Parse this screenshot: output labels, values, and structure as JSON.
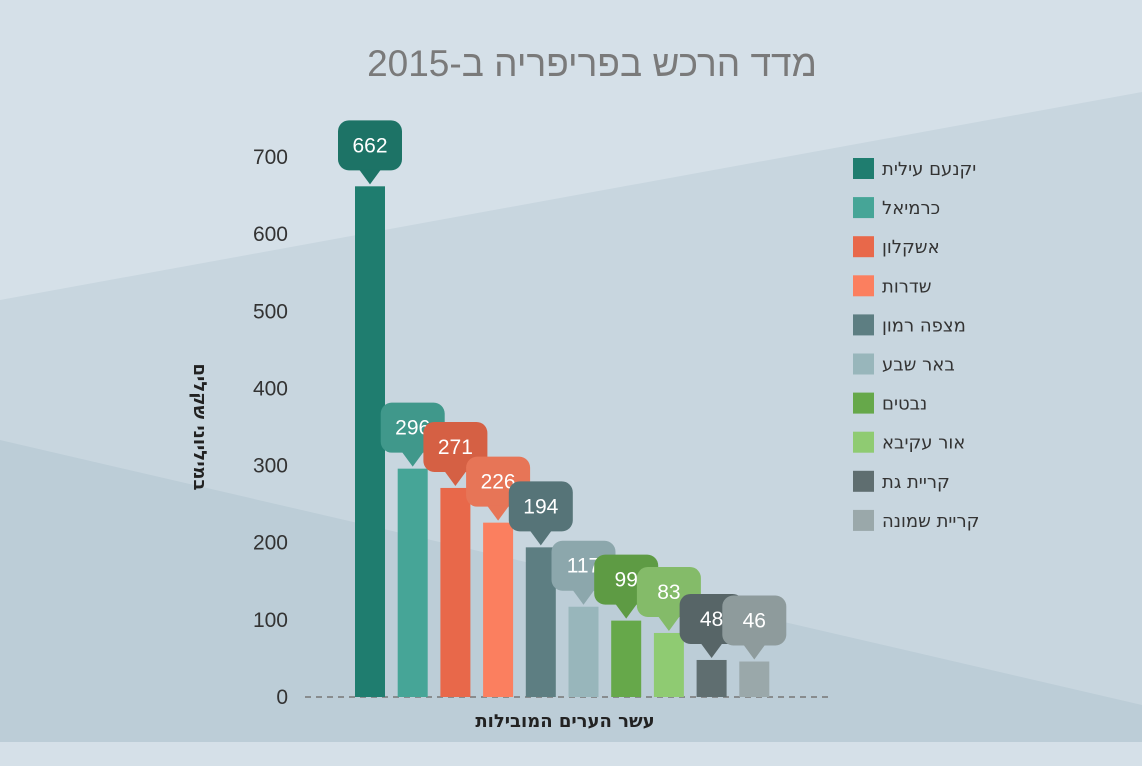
{
  "chart_data": {
    "type": "bar",
    "title": "מדד הרכש בפריפריה ב-2015",
    "xlabel": "עשר הערים המובילות",
    "ylabel": "במיליוני שקלים",
    "ylim": [
      0,
      700
    ],
    "yticks": [
      0,
      100,
      200,
      300,
      400,
      500,
      600,
      700
    ],
    "legend_position": "right",
    "grid": false,
    "categories": [
      "יקנעם עילית",
      "כרמיאל",
      "אשקלון",
      "שדרות",
      "מצפה רמון",
      "באר שבע",
      "נבטים",
      "אור עקיבא",
      "קריית גת",
      "קריית שמונה"
    ],
    "values": [
      662,
      296,
      271,
      226,
      194,
      117,
      99,
      83,
      48,
      46
    ],
    "colors": [
      "#1f7d6f",
      "#46a597",
      "#e8684a",
      "#fb7f5f",
      "#5d7e82",
      "#98b6bb",
      "#66a84a",
      "#8fcb72",
      "#5f6e70",
      "#9aa8aa"
    ]
  }
}
